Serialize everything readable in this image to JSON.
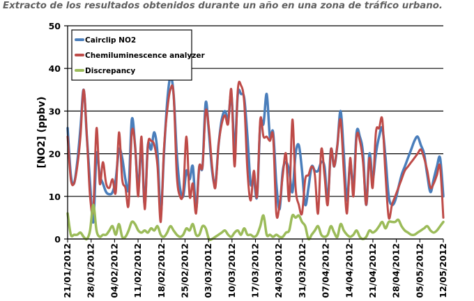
{
  "caption": "Extracto de los resultados obtenidos durante un año en una zona de tráfico urbano.",
  "chart_data": {
    "type": "line",
    "title": "",
    "xlabel": "",
    "ylabel": "[NO2] (ppbv)",
    "ylim": [
      0,
      50
    ],
    "yticks": [
      0,
      10,
      20,
      30,
      40,
      50
    ],
    "grid": "horizontal",
    "legend_position": "top-left",
    "x_labels": [
      "21/01/2012",
      "28/01/2012",
      "04/02/2012",
      "11/02/2012",
      "18/02/2012",
      "25/02/2012",
      "03/03/2012",
      "10/03/2012",
      "17/03/2012",
      "24/03/2012",
      "31/03/2012",
      "07/04/2012",
      "14/04/2012",
      "21/04/2012",
      "28/04/2012",
      "05/05/2012",
      "12/05/2012"
    ],
    "x": [
      0,
      1,
      2,
      3,
      4,
      5,
      6,
      7,
      8,
      9,
      10,
      11,
      12,
      13,
      14,
      15,
      16,
      17,
      18,
      19,
      20,
      21,
      22,
      23,
      24,
      25,
      26,
      27,
      28,
      29,
      30,
      31,
      32,
      33,
      34,
      35,
      36,
      37,
      38,
      39,
      40,
      41,
      42,
      43,
      44,
      45,
      46,
      47,
      48,
      49,
      50,
      51,
      52,
      53,
      54,
      55,
      56,
      57,
      58,
      59,
      60,
      61,
      62,
      63,
      64,
      65,
      66,
      67,
      68,
      69,
      70,
      71,
      72,
      73,
      74,
      75,
      76,
      77,
      78,
      79,
      80,
      81,
      82,
      83,
      84,
      85,
      86,
      87,
      88,
      89,
      90,
      91,
      92,
      93,
      94,
      95,
      96,
      97,
      98,
      99,
      100,
      101,
      102,
      103,
      104,
      105,
      106,
      107,
      108,
      109,
      110,
      111,
      112,
      113,
      114,
      115,
      116,
      117
    ],
    "series": [
      {
        "name": "Cairclip NO2",
        "color": "#4a7ebb",
        "values": [
          26,
          15,
          13,
          18,
          26,
          35,
          24,
          13,
          4,
          20,
          15,
          13,
          11,
          10.5,
          11,
          14,
          21,
          19,
          14,
          12,
          28,
          22,
          12,
          22,
          8,
          22,
          21,
          25,
          20,
          6,
          20,
          32,
          38,
          34,
          20,
          12,
          10,
          16,
          14,
          17,
          7,
          17,
          17,
          32,
          25,
          16,
          13,
          22,
          28,
          30,
          28,
          34,
          21,
          34,
          34,
          33,
          24,
          13,
          14,
          10,
          27,
          27,
          34,
          24,
          25,
          13,
          7,
          16,
          18,
          16,
          11,
          20,
          22,
          16,
          8,
          12,
          17,
          16,
          16,
          18,
          17,
          9,
          21,
          17,
          22,
          30,
          20,
          9,
          18,
          12,
          25,
          24,
          20,
          8,
          20,
          14,
          20,
          24,
          26,
          19,
          10,
          8,
          9,
          12,
          15,
          17,
          19,
          21,
          23,
          24,
          22,
          20,
          15,
          11,
          14,
          17,
          19,
          10
        ],
        "line_width": 3.5
      },
      {
        "name": "Chemiluminescence analyzer",
        "color": "#be4b48",
        "values": [
          24,
          14,
          13,
          17,
          24,
          35,
          24,
          10,
          7,
          26,
          13,
          18,
          13,
          12,
          14,
          11,
          25,
          14,
          12,
          8,
          25,
          22,
          10,
          24,
          7,
          22,
          23,
          22,
          17,
          4,
          21,
          30,
          35,
          34,
          15,
          10,
          11,
          24,
          10,
          13,
          6,
          17,
          17,
          30,
          26,
          17,
          12,
          22,
          27,
          29,
          27,
          35,
          17,
          35,
          36,
          32,
          16,
          9,
          16,
          10,
          28,
          24,
          24,
          23,
          24,
          6,
          8,
          15,
          20,
          9,
          28,
          12,
          8,
          6,
          14,
          15,
          17,
          15,
          6,
          21,
          15,
          8,
          21,
          17,
          22,
          28,
          16,
          6,
          19,
          10,
          24,
          23,
          18,
          8,
          19,
          12,
          25,
          26,
          28,
          15,
          5,
          8,
          10,
          12,
          14,
          16,
          17,
          18,
          19,
          20,
          21,
          19,
          16,
          12,
          13,
          15,
          17,
          5
        ],
        "line_width": 3.0
      },
      {
        "name": "Discrepancy",
        "color": "#9bbb59",
        "values": [
          6,
          1,
          1,
          1,
          1.5,
          0.5,
          0,
          2,
          8,
          2,
          0.5,
          1,
          1,
          2,
          3,
          1,
          3.5,
          0.5,
          0.5,
          2,
          4,
          3.5,
          2,
          1.5,
          2,
          1.5,
          2.5,
          2,
          3,
          1,
          0.5,
          1.5,
          3,
          2,
          1,
          0.5,
          1,
          2.5,
          2,
          3.5,
          1,
          1,
          3,
          2.5,
          0,
          0,
          0.5,
          1,
          1.5,
          2,
          1,
          0.5,
          1.5,
          2,
          1,
          2.5,
          1,
          1,
          0.5,
          1,
          3,
          5.5,
          1,
          1,
          0.5,
          1,
          0.5,
          0.5,
          1.5,
          2,
          5.5,
          5,
          5.5,
          4,
          3,
          0,
          1,
          2,
          3,
          1,
          0.5,
          1,
          3,
          1.5,
          0.5,
          3.5,
          2,
          1,
          0.5,
          1,
          2,
          0.5,
          0,
          0.5,
          2,
          1.5,
          2,
          3,
          4,
          2.5,
          4,
          4,
          4,
          4.5,
          3,
          2,
          1.5,
          1,
          1,
          1.5,
          2,
          2.5,
          3,
          2,
          1.5,
          2,
          3,
          4
        ],
        "line_width": 3.5
      }
    ]
  }
}
